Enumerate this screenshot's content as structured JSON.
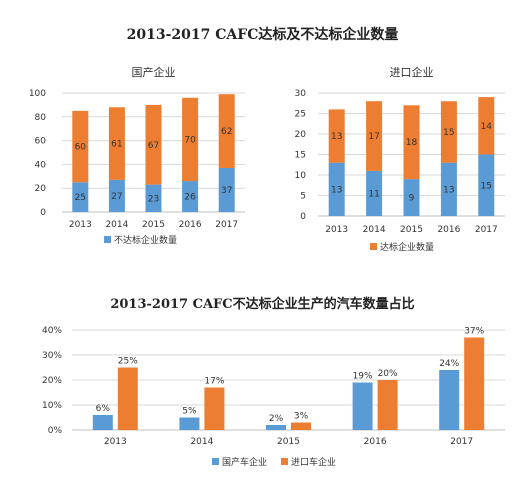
{
  "page_title": "2013-2017 CAFC达标及不达标企业数量",
  "bottom_title": "2013-2017 CAFC不达标企业生产的汽车数量占比",
  "colors": {
    "blue": "#5b9bd5",
    "orange": "#ed7d31",
    "grid": "#d9d9d9",
    "axis": "#bfbfbf"
  },
  "chart_data": [
    {
      "type": "bar",
      "stacked": true,
      "title": "国产企业",
      "categories": [
        "2013",
        "2014",
        "2015",
        "2016",
        "2017"
      ],
      "series": [
        {
          "name": "不达标企业数量",
          "color": "#5b9bd5",
          "values": [
            25,
            27,
            23,
            26,
            37
          ]
        },
        {
          "name": "",
          "color": "#ed7d31",
          "values": [
            60,
            61,
            67,
            70,
            62
          ]
        }
      ],
      "ylim": [
        0,
        100
      ],
      "yticks": [
        0,
        20,
        40,
        60,
        80,
        100
      ],
      "grid": true,
      "legend": [
        "不达标企业数量"
      ]
    },
    {
      "type": "bar",
      "stacked": true,
      "title": "进口企业",
      "categories": [
        "2013",
        "2014",
        "2015",
        "2016",
        "2017"
      ],
      "series": [
        {
          "name": "",
          "color": "#5b9bd5",
          "values": [
            13,
            11,
            9,
            13,
            15
          ]
        },
        {
          "name": "达标企业数量",
          "color": "#ed7d31",
          "values": [
            13,
            17,
            18,
            15,
            14
          ]
        }
      ],
      "ylim": [
        0,
        30
      ],
      "yticks": [
        0,
        5,
        10,
        15,
        20,
        25,
        30
      ],
      "grid": true,
      "legend": [
        "达标企业数量"
      ]
    },
    {
      "type": "bar",
      "stacked": false,
      "title": "2013-2017 CAFC不达标企业生产的汽车数量占比",
      "categories": [
        "2013",
        "2014",
        "2015",
        "2016",
        "2017"
      ],
      "series": [
        {
          "name": "国产车企业",
          "color": "#5b9bd5",
          "values": [
            6,
            5,
            2,
            19,
            24
          ],
          "labels": [
            "6%",
            "5%",
            "2%",
            "19%",
            "24%"
          ]
        },
        {
          "name": "进口车企业",
          "color": "#ed7d31",
          "values": [
            25,
            17,
            3,
            20,
            37
          ],
          "labels": [
            "25%",
            "17%",
            "3%",
            "20%",
            "37%"
          ]
        }
      ],
      "ylim": [
        0,
        40
      ],
      "yticks": [
        "0%",
        "10%",
        "20%",
        "30%",
        "40%"
      ],
      "grid": true,
      "legend": [
        "国产车企业",
        "进口车企业"
      ]
    }
  ]
}
